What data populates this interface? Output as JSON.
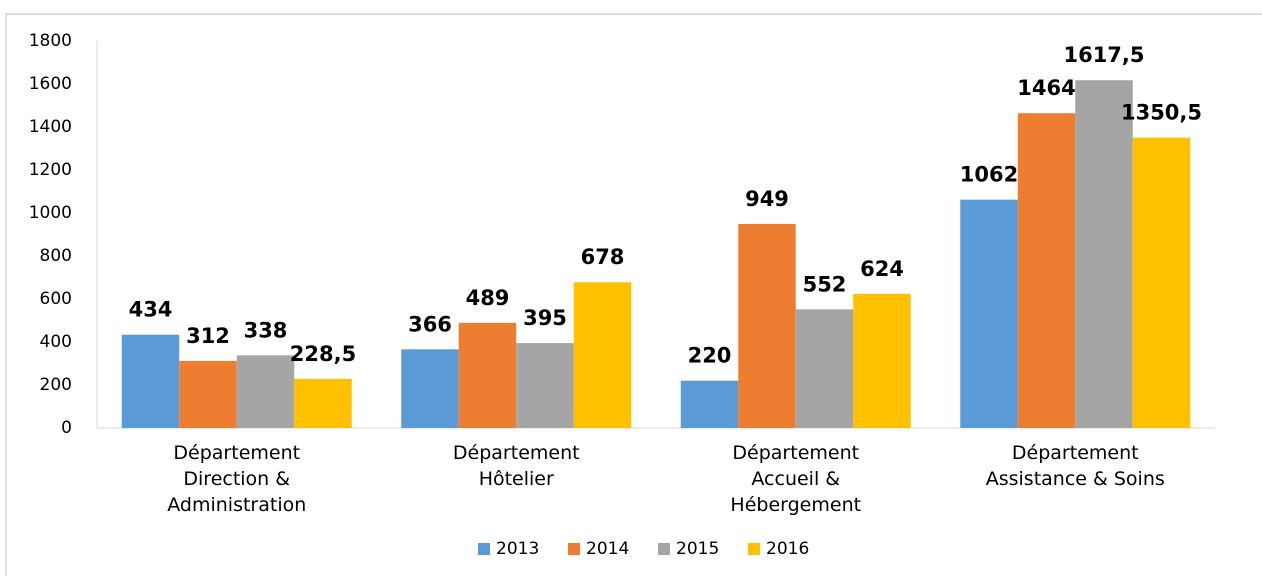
{
  "chart_data": {
    "type": "bar",
    "categories": [
      "Département\nDirection &\nAdministration",
      "Département\nHôtelier",
      "Département\nAccueil &\nHébergement",
      "Département\nAssistance & Soins"
    ],
    "series": [
      {
        "name": "2013",
        "color": "#5b9bd5",
        "values": [
          434,
          366,
          220,
          1062
        ],
        "value_labels": [
          "434",
          "366",
          "220",
          "1062"
        ]
      },
      {
        "name": "2014",
        "color": "#ed7d31",
        "values": [
          312,
          489,
          949,
          1464
        ],
        "value_labels": [
          "312",
          "489",
          "949",
          "1464"
        ]
      },
      {
        "name": "2015",
        "color": "#a5a5a5",
        "values": [
          338,
          395,
          552,
          1617.5
        ],
        "value_labels": [
          "338",
          "395",
          "552",
          "1617,5"
        ]
      },
      {
        "name": "2016",
        "color": "#ffc000",
        "values": [
          228.5,
          678,
          624,
          1350.5
        ],
        "value_labels": [
          "228,5",
          "678",
          "624",
          "1350,5"
        ]
      }
    ],
    "ylim": [
      0,
      1800
    ],
    "yticks": [
      0,
      200,
      400,
      600,
      800,
      1000,
      1200,
      1400,
      1600,
      1800
    ],
    "grid": false,
    "legend": "bottom"
  }
}
